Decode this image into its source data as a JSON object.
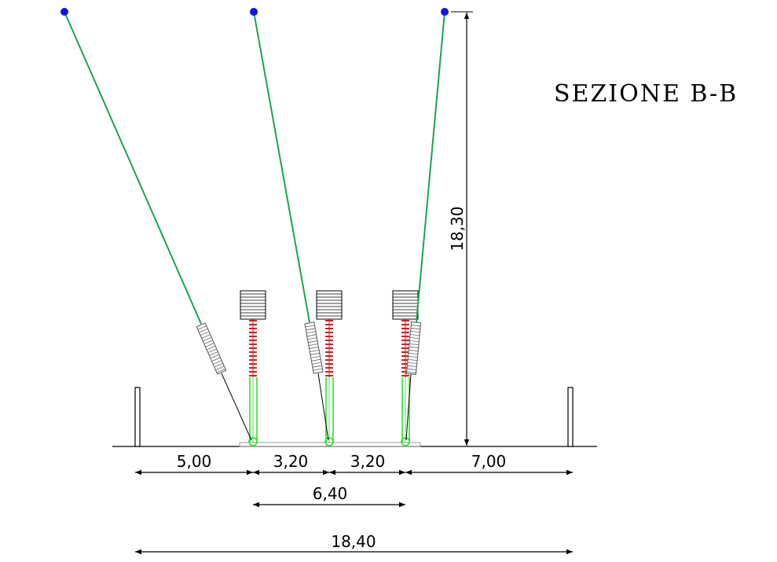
{
  "title": "SEZIONE B-B",
  "dimensions": {
    "horizontal_segments": [
      "5,00",
      "3,20",
      "3,20",
      "7,00"
    ],
    "phase_span": "6,40",
    "total_width": "18,40",
    "height": "18,30"
  },
  "colors": {
    "conductor": "#1aa35a",
    "anchor_point": "#1515e0",
    "support_green": "#22dd22",
    "insulator_red": "#cc2222",
    "line": "#000000"
  }
}
